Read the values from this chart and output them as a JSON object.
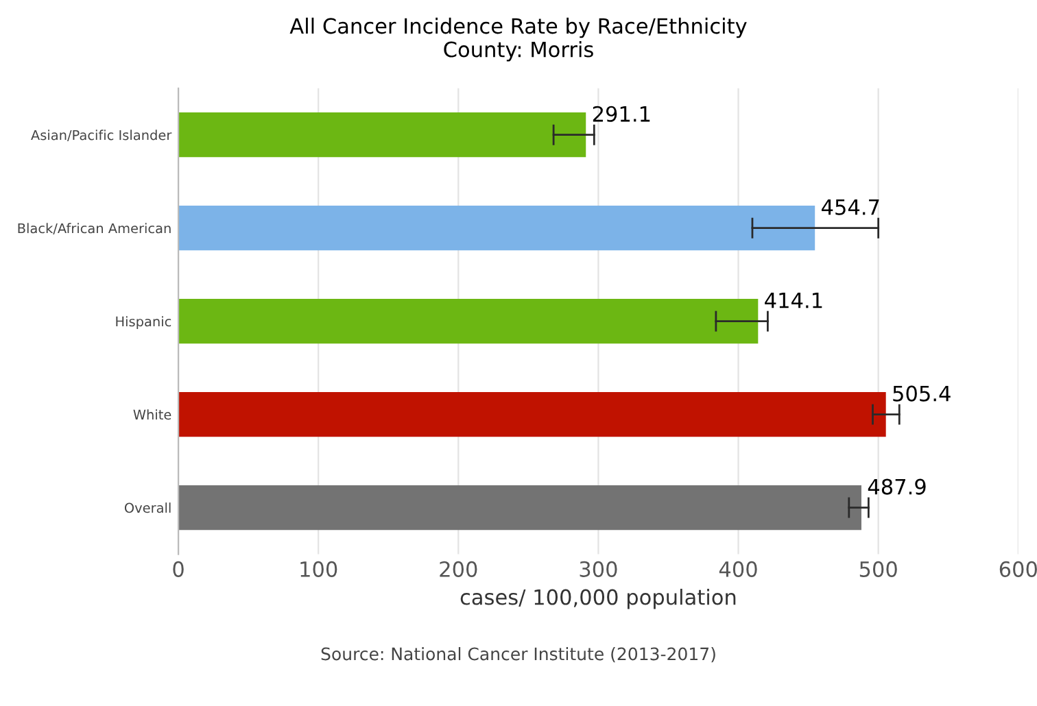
{
  "chart_data": {
    "type": "bar",
    "orientation": "horizontal",
    "title": "All Cancer Incidence Rate by Race/Ethnicity\nCounty: Morris",
    "xlabel": "cases/ 100,000 population",
    "categories": [
      "Asian/Pacific Islander",
      "Black/African American",
      "Hispanic",
      "White",
      "Overall"
    ],
    "values": [
      291.1,
      454.7,
      414.1,
      505.4,
      487.9
    ],
    "colors": [
      "#6cb713",
      "#7cb3e8",
      "#6cb713",
      "#c01200",
      "#737373"
    ],
    "errors": [
      [
        268,
        297
      ],
      [
        410,
        500
      ],
      [
        384,
        421
      ],
      [
        496,
        515
      ],
      [
        479,
        493
      ]
    ],
    "data_labels": true,
    "xlim": [
      0,
      600
    ],
    "xticks": [
      0,
      100,
      200,
      300,
      400,
      500,
      600
    ],
    "grid": "x",
    "annotations": [
      "Source: National Cancer Institute (2013-2017)"
    ]
  }
}
